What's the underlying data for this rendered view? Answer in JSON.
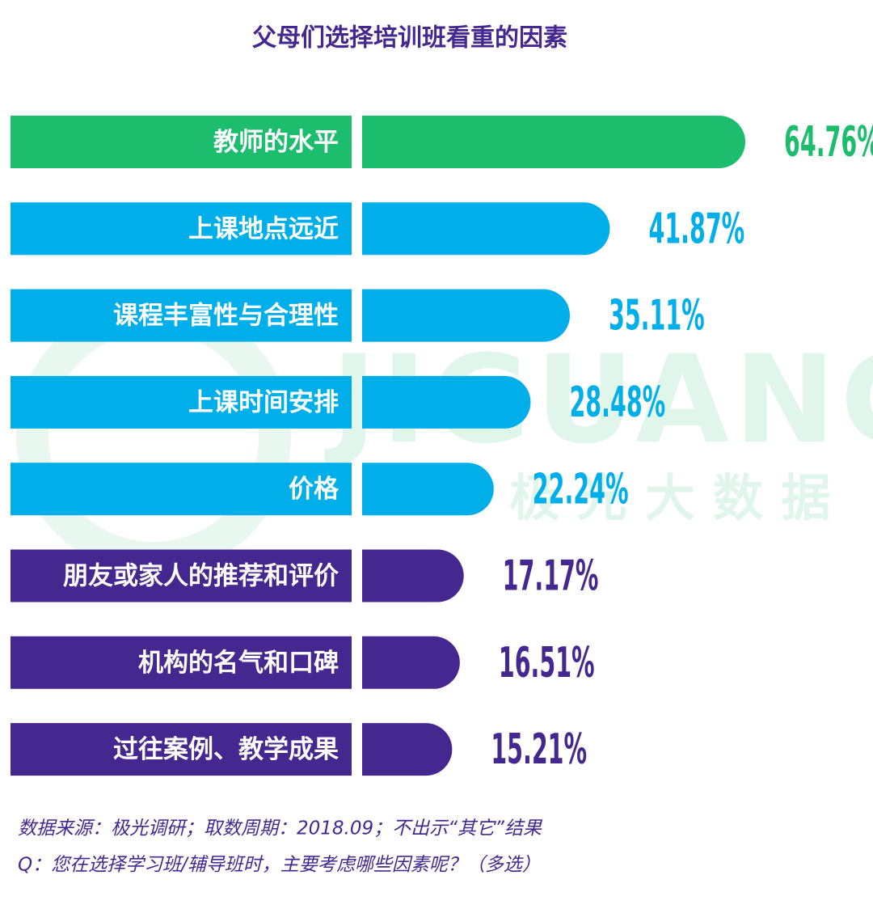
{
  "chart_data": {
    "type": "bar",
    "title": "父母们选择培训班看重的因素",
    "categories": [
      "教师的水平",
      "上课地点远近",
      "课程丰富性与合理性",
      "上课时间安排",
      "价格",
      "朋友或家人的推荐和评价",
      "机构的名气和口碑",
      "过往案例、教学成果"
    ],
    "values": [
      64.76,
      41.87,
      35.11,
      28.48,
      22.24,
      17.17,
      16.51,
      15.21
    ],
    "value_labels": [
      "64.76%",
      "41.87%",
      "35.11%",
      "28.48%",
      "22.24%",
      "17.17%",
      "16.51%",
      "15.21%"
    ],
    "colors": [
      "#1dbd6e",
      "#00aeea",
      "#00aeea",
      "#00aeea",
      "#00aeea",
      "#45288f",
      "#45288f",
      "#45288f"
    ],
    "watermark": [
      "JIGUANG",
      "极光大数据"
    ],
    "notes": [
      "数据来源：极光调研；取数周期：2018.09；不出示“其它”结果",
      "Q：您在选择学习班/辅导班时，主要考虑哪些因素呢？（多选）"
    ]
  }
}
